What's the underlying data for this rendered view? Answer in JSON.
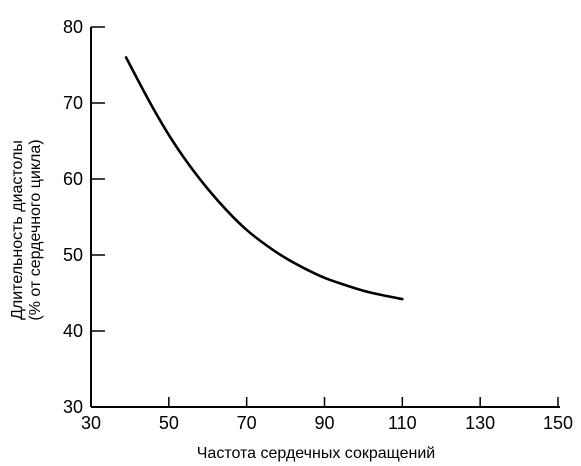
{
  "chart_data": {
    "type": "line",
    "title": "",
    "xlabel": "Частота сердечных сокращений",
    "ylabel_line1": "Длительность диастолы",
    "ylabel_line2": "(% от сердечного цикла)",
    "xlim": [
      30,
      150
    ],
    "ylim": [
      30,
      80
    ],
    "xticks": [
      30,
      50,
      70,
      90,
      110,
      130,
      150
    ],
    "xtick_labels": [
      "30",
      "50",
      "70",
      "90",
      "110",
      "130",
      "150"
    ],
    "yticks": [
      30,
      40,
      50,
      60,
      70,
      80
    ],
    "ytick_labels": [
      "30",
      "40",
      "50",
      "60",
      "70",
      "80"
    ],
    "grid": false,
    "legend": "none",
    "line_color": "#000000",
    "series": [
      {
        "x": [
          39,
          45,
          50,
          55,
          60,
          65,
          70,
          75,
          80,
          85,
          90,
          95,
          100,
          105,
          110
        ],
        "y": [
          76,
          70.2,
          65.8,
          62.0,
          58.7,
          55.8,
          53.3,
          51.3,
          49.6,
          48.2,
          47.0,
          46.1,
          45.3,
          44.7,
          44.2
        ]
      }
    ]
  }
}
